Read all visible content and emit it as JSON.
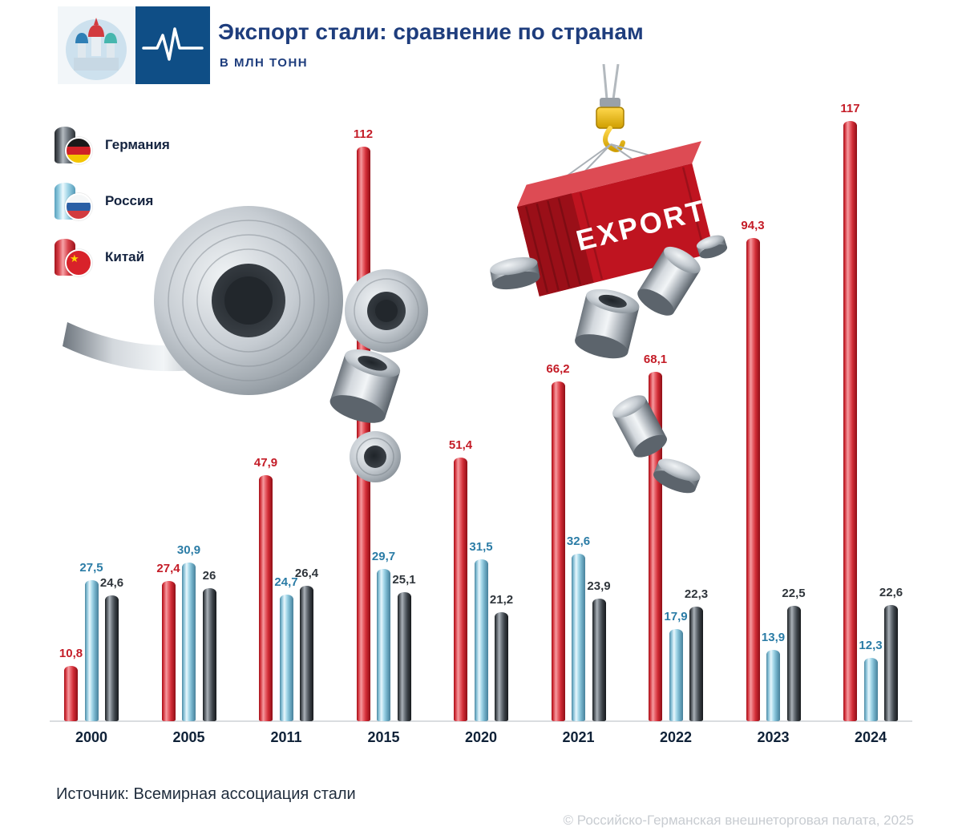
{
  "header": {
    "title": "Экспорт стали: сравнение по странам",
    "subtitle": "В МЛН ТОНН"
  },
  "legend": {
    "items": [
      {
        "label": "Германия",
        "key": "germany"
      },
      {
        "label": "Россия",
        "key": "russia"
      },
      {
        "label": "Китай",
        "key": "china"
      }
    ]
  },
  "illustration": {
    "container_label": "EXPORT"
  },
  "chart_data": {
    "type": "bar",
    "unit": "млн тонн",
    "categories": [
      "2000",
      "2005",
      "2011",
      "2015",
      "2020",
      "2021",
      "2022",
      "2023",
      "2024"
    ],
    "series": [
      {
        "name": "Китай",
        "key": "china",
        "color": "#c41c27",
        "values": [
          10.8,
          27.4,
          47.9,
          112,
          51.4,
          66.2,
          68.1,
          94.3,
          117
        ],
        "labels": [
          "10,8",
          "27,4",
          "47,9",
          "112",
          "51,4",
          "66,2",
          "68,1",
          "94,3",
          "117"
        ]
      },
      {
        "name": "Россия",
        "key": "russia",
        "color": "#8cc6dc",
        "values": [
          27.5,
          30.9,
          24.7,
          29.7,
          31.5,
          32.6,
          17.9,
          13.9,
          12.3
        ],
        "labels": [
          "27,5",
          "30,9",
          "24,7",
          "29,7",
          "31,5",
          "32,6",
          "17,9",
          "13,9",
          "12,3"
        ]
      },
      {
        "name": "Германия",
        "key": "germany",
        "color": "#4a5056",
        "values": [
          24.6,
          26,
          26.4,
          25.1,
          21.2,
          23.9,
          22.3,
          22.5,
          22.6
        ],
        "labels": [
          "24,6",
          "26",
          "26,4",
          "25,1",
          "21,2",
          "23,9",
          "22,3",
          "22,5",
          "22,6"
        ]
      }
    ],
    "ylim": [
      0,
      120
    ],
    "grid": false,
    "legend_position": "top-left"
  },
  "footer": {
    "source": "Источник: Всемирная ассоциация стали",
    "copyright": "© Российско-Германская внешнеторговая палата, 2025"
  }
}
